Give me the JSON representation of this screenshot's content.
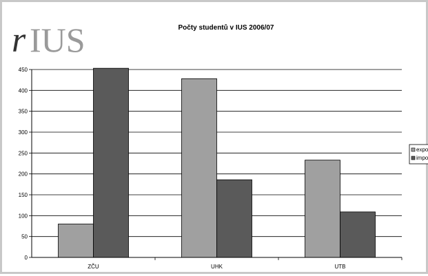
{
  "logo": {
    "text_r": "r",
    "text_ius": "IUS"
  },
  "chart_data": {
    "type": "bar",
    "title": "Počty studentů v IUS 2006/07",
    "xlabel": "",
    "ylabel": "",
    "categories": [
      "ZČU",
      "UHK",
      "UTB"
    ],
    "series": [
      {
        "name": "export",
        "color": "#a0a0a0",
        "values": [
          80,
          428,
          233
        ]
      },
      {
        "name": "import",
        "color": "#5a5a5a",
        "values": [
          453,
          186,
          109
        ]
      }
    ],
    "ylim": [
      0,
      450
    ],
    "yticks": [
      0,
      50,
      100,
      150,
      200,
      250,
      300,
      350,
      400,
      450
    ],
    "grid": true,
    "legend_position": "right"
  }
}
